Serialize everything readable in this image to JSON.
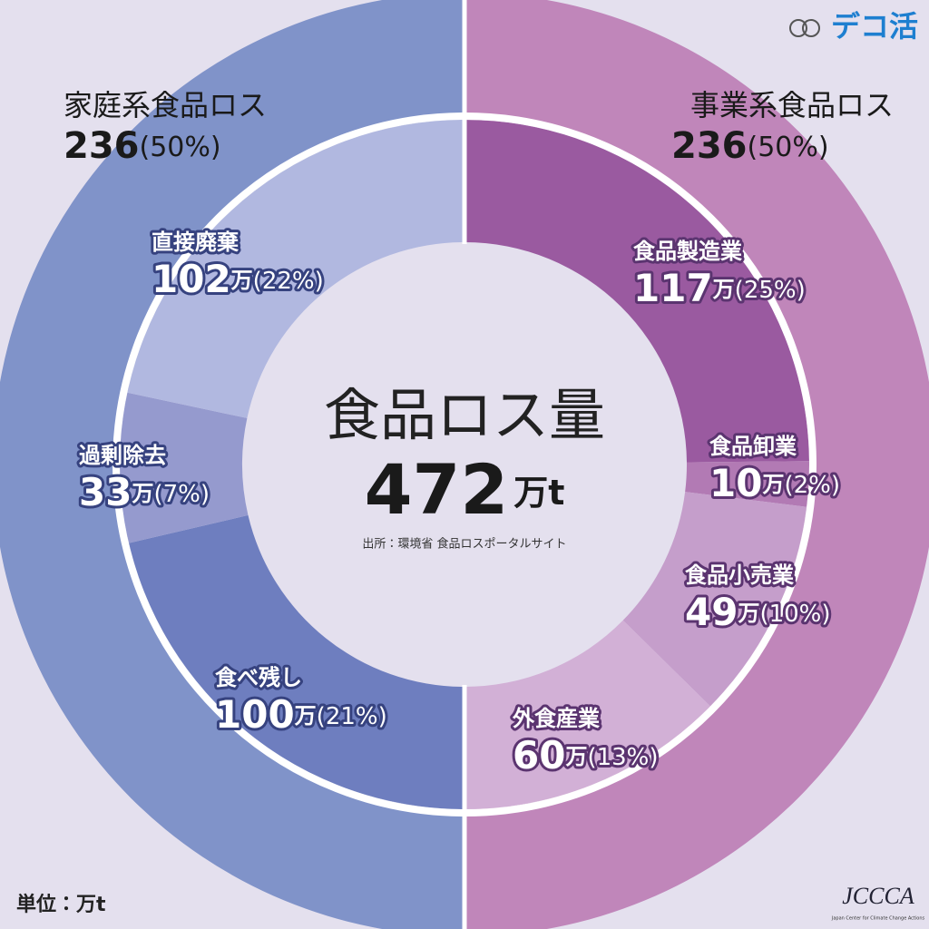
{
  "chart_data": {
    "type": "nested-donut",
    "title": "食品ロス量",
    "total": 472,
    "total_unit": "万t",
    "source": "出所：環境省 食品ロスポータルサイト",
    "unit_note": "単位：万t",
    "unit": "万",
    "outer": {
      "categories": [
        "事業系食品ロス",
        "家庭系食品ロス"
      ],
      "values": [
        236,
        236
      ],
      "percent_labels": [
        "(50%)",
        "(50%)"
      ],
      "colors": [
        "#c086ba",
        "#8093c9"
      ]
    },
    "inner": {
      "categories": [
        "食品製造業",
        "食品卸業",
        "食品小売業",
        "外食産業",
        "食べ残し",
        "過剰除去",
        "直接廃棄"
      ],
      "values": [
        117,
        10,
        49,
        60,
        100,
        33,
        102
      ],
      "percent_labels": [
        "(25%)",
        "(2%)",
        "(10%)",
        "(13%)",
        "(21%)",
        "(7%)",
        "(22%)"
      ],
      "colors": [
        "#9a5aa0",
        "#b27ab4",
        "#c59ecb",
        "#d2b0d6",
        "#6e7ebf",
        "#959ace",
        "#b1b8e0"
      ]
    }
  },
  "logo": {
    "text": "デコ活"
  },
  "footer_logo": {
    "text": "JCCCA",
    "subtitle": "Japan Center for Climate Change Actions"
  }
}
